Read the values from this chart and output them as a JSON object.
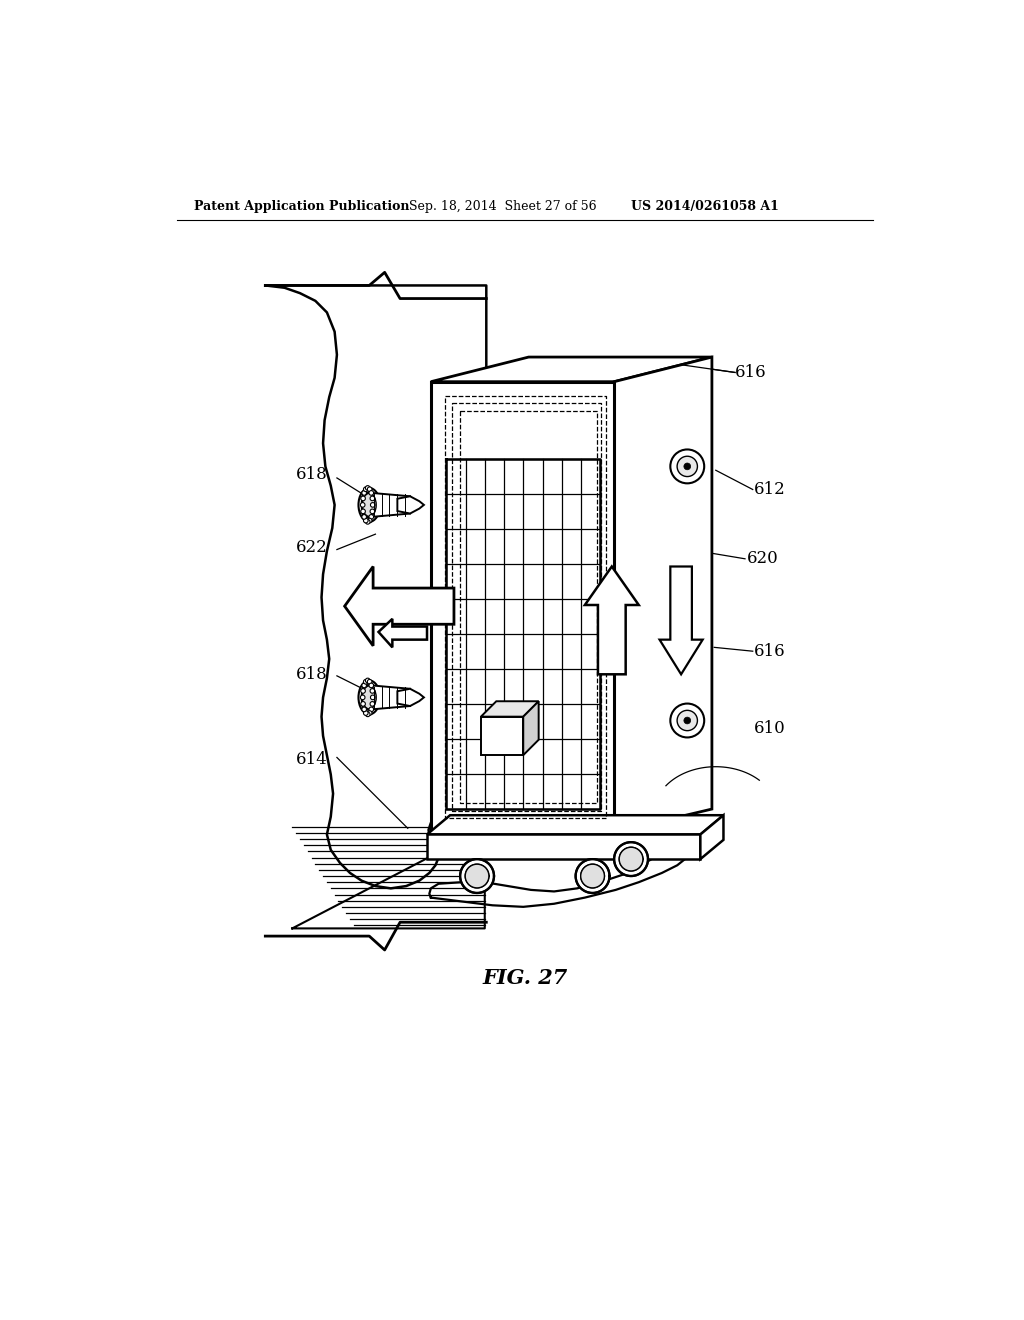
{
  "header_left": "Patent Application Publication",
  "header_center": "Sep. 18, 2014  Sheet 27 of 56",
  "header_right": "US 2014/0261058 A1",
  "figure_label": "FIG. 27",
  "background_color": "#ffffff"
}
